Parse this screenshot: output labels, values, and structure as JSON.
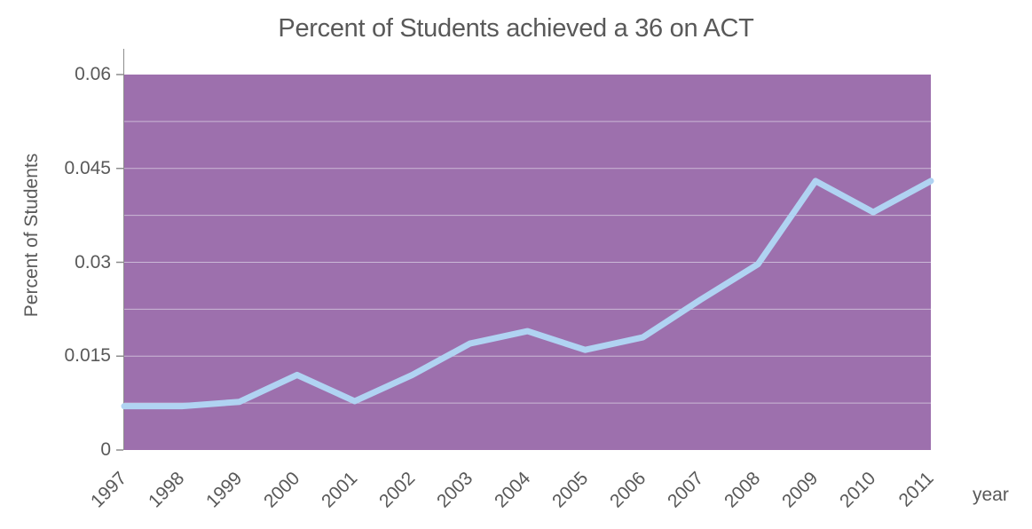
{
  "chart_data": {
    "type": "line",
    "title": "Percent of Students achieved a 36 on ACT",
    "xlabel": "year",
    "ylabel": "Percent of Students",
    "categories": [
      "1997",
      "1998",
      "1999",
      "2000",
      "2001",
      "2002",
      "2003",
      "2004",
      "2005",
      "2006",
      "2007",
      "2008",
      "2009",
      "2010",
      "2011"
    ],
    "values": [
      0.007,
      0.007,
      0.0077,
      0.012,
      0.0078,
      0.012,
      0.017,
      0.019,
      0.016,
      0.018,
      0.024,
      0.0297,
      0.043,
      0.038,
      0.043
    ],
    "ylim": [
      0,
      0.06
    ],
    "yticks": [
      0,
      0.015,
      0.03,
      0.045,
      0.06
    ],
    "ytick_labels": [
      "0",
      "0.015",
      "0.03",
      "0.045",
      "0.06"
    ],
    "minor_gridline_step": 0.0075,
    "grid": "horizontal",
    "legend": "none",
    "colors": {
      "plot_background": "#9D70AD",
      "line": "#B0D3F2",
      "gridline": "#CBB8D6",
      "axis": "#8C8C8C",
      "text": "#595959",
      "page_background": "#FFFFFF"
    }
  }
}
